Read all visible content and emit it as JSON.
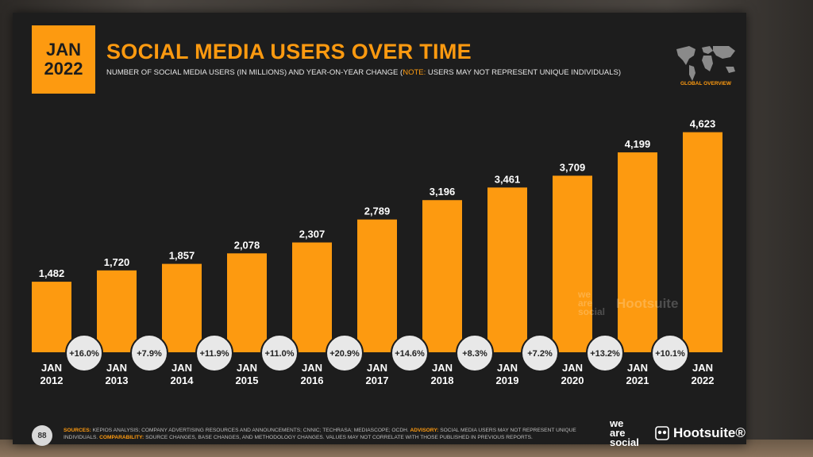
{
  "slide": {
    "date_line1": "JAN",
    "date_line2": "2022",
    "title": "SOCIAL MEDIA USERS OVER TIME",
    "subtitle_main": "NUMBER OF SOCIAL MEDIA USERS (IN MILLIONS) AND YEAR-ON-YEAR CHANGE (",
    "subtitle_note_key": "NOTE:",
    "subtitle_note": " USERS MAY NOT REPRESENT UNIQUE INDIVIDUALS)",
    "globe_label": "GLOBAL OVERVIEW",
    "page_number": "88",
    "sources_key": "SOURCES:",
    "sources_text": " KEPIOS ANALYSIS; COMPANY ADVERTISING RESOURCES AND ANNOUNCEMENTS; CNNIC; TECHRASA; MEDIASCOPE; OCDH. ",
    "advisory_key": "ADVISORY:",
    "advisory_text": " SOCIAL MEDIA USERS MAY NOT REPRESENT UNIQUE INDIVIDUALS. ",
    "comparability_key": "COMPARABILITY:",
    "comparability_text": " SOURCE CHANGES, BASE CHANGES, AND METHODOLOGY CHANGES. VALUES MAY NOT CORRELATE WITH THOSE PUBLISHED IN PREVIOUS REPORTS.",
    "brand_we": "we",
    "brand_are": "are",
    "brand_social": "social",
    "brand_hootsuite": "Hootsuite®",
    "watermark_hootsuite": "Hootsuite"
  },
  "colors": {
    "accent": "#fd9a10",
    "background": "#1d1d1d",
    "bubble": "#e8e8e8"
  },
  "chart_data": {
    "type": "bar",
    "categories": [
      [
        "JAN",
        "2012"
      ],
      [
        "JAN",
        "2013"
      ],
      [
        "JAN",
        "2014"
      ],
      [
        "JAN",
        "2015"
      ],
      [
        "JAN",
        "2016"
      ],
      [
        "JAN",
        "2017"
      ],
      [
        "JAN",
        "2018"
      ],
      [
        "JAN",
        "2019"
      ],
      [
        "JAN",
        "2020"
      ],
      [
        "JAN",
        "2021"
      ],
      [
        "JAN",
        "2022"
      ]
    ],
    "values": [
      1482,
      1720,
      1857,
      2078,
      2307,
      2789,
      3196,
      3461,
      3709,
      4199,
      4623
    ],
    "value_labels": [
      "1,482",
      "1,720",
      "1,857",
      "2,078",
      "2,307",
      "2,789",
      "3,196",
      "3,461",
      "3,709",
      "4,199",
      "4,623"
    ],
    "yoy_changes": [
      "+16.0%",
      "+7.9%",
      "+11.9%",
      "+11.0%",
      "+20.9%",
      "+14.6%",
      "+8.3%",
      "+7.2%",
      "+13.2%",
      "+10.1%"
    ],
    "ylim": [
      0,
      5000
    ],
    "grid": false,
    "legend": "none"
  }
}
